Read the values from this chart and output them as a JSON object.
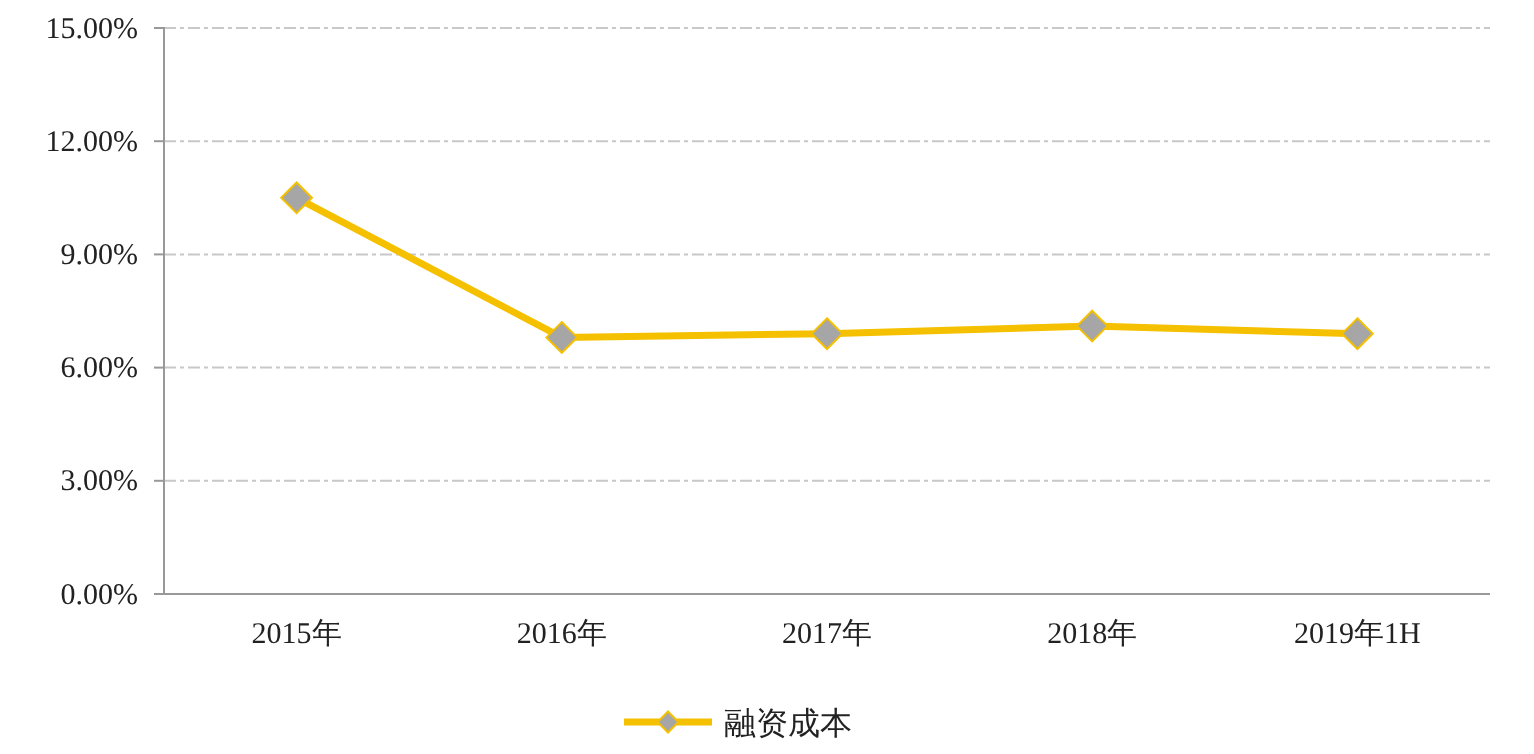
{
  "chart_data": {
    "type": "line",
    "categories": [
      "2015年",
      "2016年",
      "2017年",
      "2018年",
      "2019年1H"
    ],
    "series": [
      {
        "name": "融资成本",
        "color": "#f5c000",
        "values": [
          10.5,
          6.8,
          6.9,
          7.1,
          6.9
        ]
      }
    ],
    "ylim": [
      0,
      15
    ],
    "yticks": [
      {
        "value": 0,
        "label": "0.00%"
      },
      {
        "value": 3,
        "label": "3.00%"
      },
      {
        "value": 6,
        "label": "6.00%"
      },
      {
        "value": 9,
        "label": "9.00%"
      },
      {
        "value": 12,
        "label": "12.00%"
      },
      {
        "value": 15,
        "label": "15.00%"
      }
    ],
    "grid": "y",
    "legend": "bottom",
    "marker": "diamond",
    "line_style": "solid"
  }
}
